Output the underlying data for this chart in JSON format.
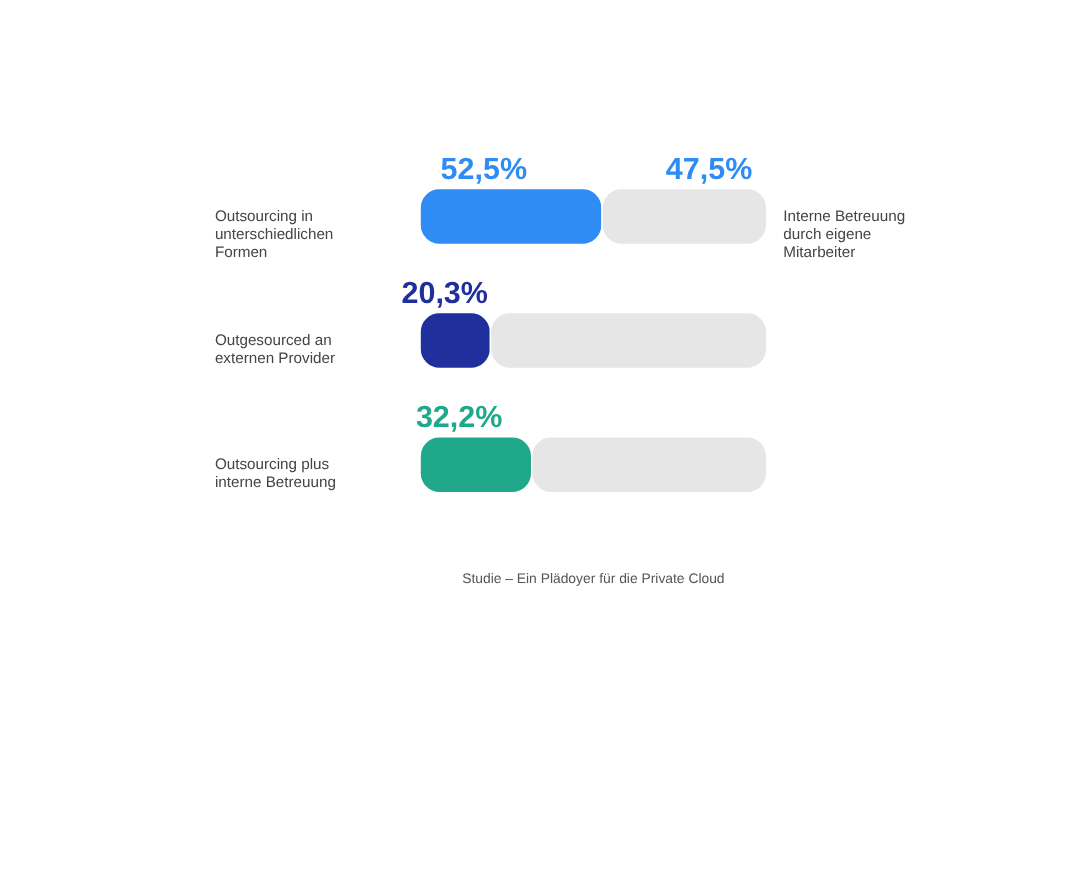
{
  "chart_data": {
    "type": "bar",
    "orientation": "horizontal",
    "stacked": true,
    "categories": [
      "Outsourcing in unterschiedlichen Formen",
      "Outgesourced an externen Provider",
      "Outsourcing plus interne Betreuung"
    ],
    "series": [
      {
        "colors": [
          "#2f8cf5",
          "#1f2f9c",
          "#1fa88a"
        ],
        "values": [
          52.5,
          20.3,
          32.2
        ],
        "value_labels": [
          "52,5%",
          "20,3%",
          "32,2%"
        ]
      },
      {
        "color": "#e6e6e6",
        "values": [
          47.5,
          79.7,
          67.8
        ],
        "value_labels": [
          "47,5%",
          null,
          null
        ]
      }
    ],
    "xlim": [
      0,
      100
    ],
    "tick_labels": false,
    "annotations": [
      "Interne Betreuung durch eigene Mitarbeiter",
      "Studie – Ein Plädoyer für die Private Cloud"
    ]
  }
}
